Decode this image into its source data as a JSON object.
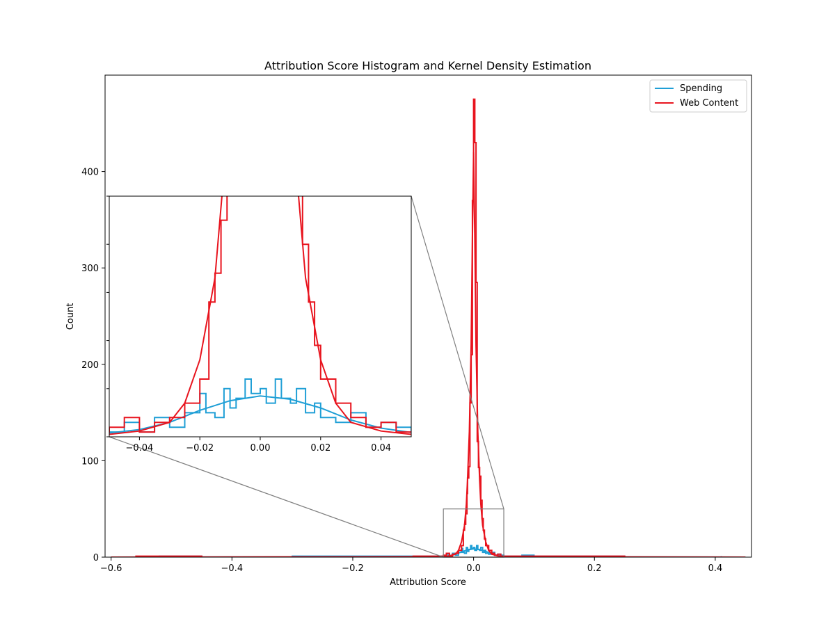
{
  "chart_data": {
    "type": "histogram",
    "title": "Attribution Score Histogram and Kernel Density Estimation",
    "xlabel": "Attribution Score",
    "ylabel": "Count",
    "xlim": [
      -0.61,
      0.46
    ],
    "ylim": [
      0,
      500
    ],
    "xticks": [
      -0.6,
      -0.4,
      -0.2,
      0.0,
      0.2,
      0.4
    ],
    "xtick_labels": [
      "−0.6",
      "−0.4",
      "−0.2",
      "0.0",
      "0.2",
      "0.4"
    ],
    "yticks": [
      0,
      100,
      200,
      300,
      400
    ],
    "ytick_labels": [
      "0",
      "100",
      "200",
      "300",
      "400"
    ],
    "grid": false,
    "legend_position": "upper right",
    "series": [
      {
        "name": "Spending",
        "color": "#1f9fd6",
        "hist": [
          [
            -0.6,
            0
          ],
          [
            -0.52,
            1
          ],
          [
            -0.45,
            0
          ],
          [
            -0.3,
            1
          ],
          [
            -0.2,
            1
          ],
          [
            -0.12,
            1
          ],
          [
            -0.08,
            1
          ],
          [
            -0.05,
            1
          ],
          [
            -0.045,
            3
          ],
          [
            -0.04,
            1
          ],
          [
            -0.035,
            4
          ],
          [
            -0.03,
            2
          ],
          [
            -0.025,
            5
          ],
          [
            -0.02,
            9
          ],
          [
            -0.018,
            5
          ],
          [
            -0.015,
            4
          ],
          [
            -0.012,
            10
          ],
          [
            -0.01,
            6
          ],
          [
            -0.008,
            8
          ],
          [
            -0.005,
            12
          ],
          [
            -0.003,
            9
          ],
          [
            0.0,
            10
          ],
          [
            0.002,
            7
          ],
          [
            0.005,
            12
          ],
          [
            0.007,
            8
          ],
          [
            0.01,
            7
          ],
          [
            0.012,
            10
          ],
          [
            0.015,
            5
          ],
          [
            0.018,
            7
          ],
          [
            0.02,
            4
          ],
          [
            0.025,
            3
          ],
          [
            0.03,
            5
          ],
          [
            0.035,
            2
          ],
          [
            0.04,
            3
          ],
          [
            0.045,
            2
          ],
          [
            0.05,
            1
          ],
          [
            0.08,
            2
          ],
          [
            0.1,
            1
          ],
          [
            0.15,
            1
          ],
          [
            0.25,
            0
          ],
          [
            0.41,
            1
          ]
        ],
        "kde": [
          [
            -0.6,
            0
          ],
          [
            -0.1,
            0.3
          ],
          [
            -0.05,
            0.8
          ],
          [
            -0.04,
            1.5
          ],
          [
            -0.03,
            3
          ],
          [
            -0.02,
            5.5
          ],
          [
            -0.01,
            7.5
          ],
          [
            0.0,
            8.5
          ],
          [
            0.01,
            7.8
          ],
          [
            0.02,
            6
          ],
          [
            0.03,
            3.5
          ],
          [
            0.04,
            1.8
          ],
          [
            0.05,
            0.9
          ],
          [
            0.1,
            0.3
          ],
          [
            0.45,
            0
          ]
        ]
      },
      {
        "name": "Web Content",
        "color": "#e8141e",
        "hist": [
          [
            -0.56,
            1
          ],
          [
            -0.45,
            0
          ],
          [
            -0.1,
            1
          ],
          [
            -0.05,
            2
          ],
          [
            -0.045,
            4
          ],
          [
            -0.04,
            1
          ],
          [
            -0.035,
            3
          ],
          [
            -0.03,
            4
          ],
          [
            -0.025,
            7
          ],
          [
            -0.02,
            12
          ],
          [
            -0.017,
            28
          ],
          [
            -0.015,
            34
          ],
          [
            -0.013,
            45
          ],
          [
            -0.011,
            66
          ],
          [
            -0.01,
            82
          ],
          [
            -0.008,
            94
          ],
          [
            -0.006,
            160
          ],
          [
            -0.004,
            210
          ],
          [
            -0.002,
            370
          ],
          [
            0.0,
            475
          ],
          [
            0.002,
            430
          ],
          [
            0.004,
            285
          ],
          [
            0.006,
            120
          ],
          [
            0.008,
            93
          ],
          [
            0.01,
            84
          ],
          [
            0.012,
            59
          ],
          [
            0.014,
            40
          ],
          [
            0.016,
            28
          ],
          [
            0.018,
            19
          ],
          [
            0.02,
            12
          ],
          [
            0.025,
            7
          ],
          [
            0.03,
            4
          ],
          [
            0.035,
            2
          ],
          [
            0.04,
            3
          ],
          [
            0.045,
            1
          ],
          [
            0.05,
            1
          ],
          [
            0.1,
            1
          ],
          [
            0.22,
            1
          ],
          [
            0.25,
            0
          ]
        ],
        "kde": [
          [
            -0.6,
            0
          ],
          [
            -0.05,
            0.5
          ],
          [
            -0.04,
            1.2
          ],
          [
            -0.03,
            3
          ],
          [
            -0.025,
            7
          ],
          [
            -0.02,
            16
          ],
          [
            -0.015,
            33
          ],
          [
            -0.012,
            55
          ],
          [
            -0.01,
            80
          ],
          [
            -0.007,
            130
          ],
          [
            -0.004,
            220
          ],
          [
            -0.002,
            330
          ],
          [
            0.0,
            420
          ],
          [
            0.002,
            330
          ],
          [
            0.004,
            220
          ],
          [
            0.007,
            130
          ],
          [
            0.01,
            80
          ],
          [
            0.012,
            55
          ],
          [
            0.015,
            33
          ],
          [
            0.02,
            16
          ],
          [
            0.025,
            7
          ],
          [
            0.03,
            3
          ],
          [
            0.04,
            1.2
          ],
          [
            0.05,
            0.5
          ],
          [
            0.45,
            0
          ]
        ]
      }
    ],
    "inset": {
      "xlim": [
        -0.05,
        0.05
      ],
      "ylim": [
        0,
        50
      ],
      "xticks": [
        -0.04,
        -0.02,
        0.0,
        0.02,
        0.04
      ],
      "xtick_labels": [
        "−0.04",
        "−0.02",
        "0.00",
        "0.02",
        "0.04"
      ]
    }
  }
}
